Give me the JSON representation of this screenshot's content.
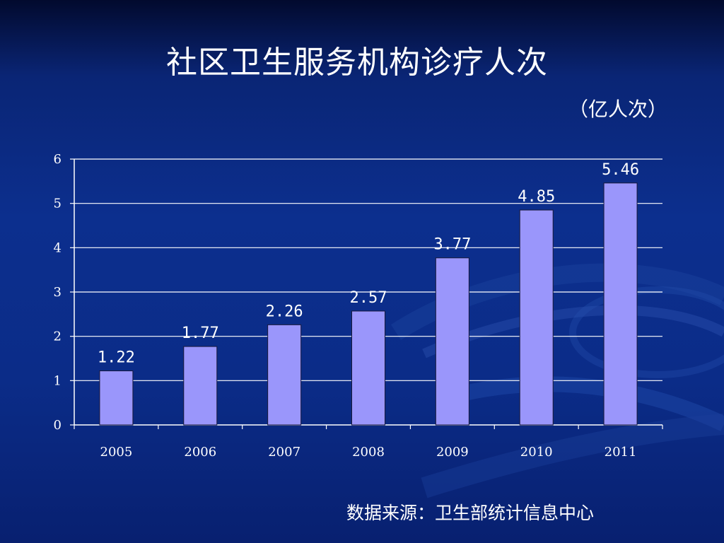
{
  "title": "社区卫生服务机构诊疗人次",
  "unit_label": "（亿人次）",
  "source_note": "数据来源：卫生部统计信息中心",
  "colors": {
    "bar_fill": "#9a96fb",
    "bar_stroke": "#1a1a3a",
    "grid": "#ffffff",
    "text": "#ffffff"
  },
  "chart_data": {
    "type": "bar",
    "title": "社区卫生服务机构诊疗人次",
    "xlabel": "",
    "ylabel": "（亿人次）",
    "categories": [
      "2005",
      "2006",
      "2007",
      "2008",
      "2009",
      "2010",
      "2011"
    ],
    "values": [
      1.22,
      1.77,
      2.26,
      2.57,
      3.77,
      4.85,
      5.46
    ],
    "value_labels": [
      "1.22",
      "1.77",
      "2.26",
      "2.57",
      "3.77",
      "4.85",
      "5.46"
    ],
    "ylim": [
      0,
      6
    ],
    "yticks": [
      "0",
      "1",
      "2",
      "3",
      "4",
      "5",
      "6"
    ],
    "grid": true,
    "legend": "none"
  }
}
